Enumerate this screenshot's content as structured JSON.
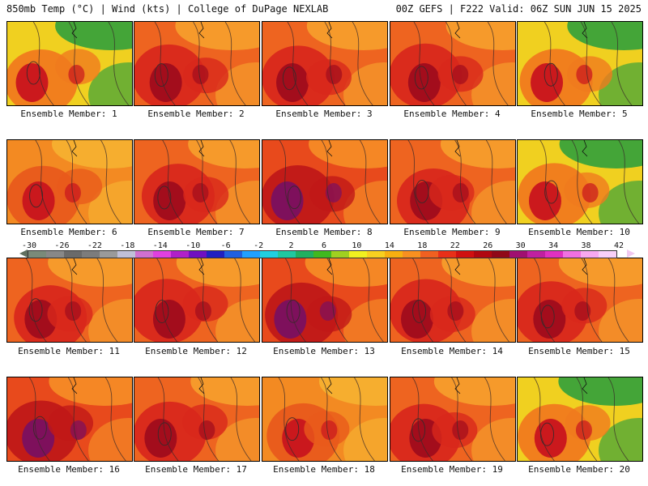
{
  "header": {
    "left": "850mb Temp (°C) | Wind (kts) | College of DuPage NEXLAB",
    "right": "00Z GEFS | F222 Valid: 06Z SUN JUN 15 2025"
  },
  "panels": [
    {
      "caption": "Ensemble Member: 1",
      "style": "cool-north"
    },
    {
      "caption": "Ensemble Member: 2",
      "style": "hot"
    },
    {
      "caption": "Ensemble Member: 3",
      "style": "hot"
    },
    {
      "caption": "Ensemble Member: 4",
      "style": "hot"
    },
    {
      "caption": "Ensemble Member: 5",
      "style": "cool-north"
    },
    {
      "caption": "Ensemble Member: 6",
      "style": "warm"
    },
    {
      "caption": "Ensemble Member: 7",
      "style": "hot"
    },
    {
      "caption": "Ensemble Member: 8",
      "style": "very-hot"
    },
    {
      "caption": "Ensemble Member: 9",
      "style": "hot"
    },
    {
      "caption": "Ensemble Member: 10",
      "style": "cool-north"
    },
    {
      "caption": "Ensemble Member: 11",
      "style": "hot"
    },
    {
      "caption": "Ensemble Member: 12",
      "style": "hot"
    },
    {
      "caption": "Ensemble Member: 13",
      "style": "very-hot"
    },
    {
      "caption": "Ensemble Member: 14",
      "style": "hot"
    },
    {
      "caption": "Ensemble Member: 15",
      "style": "hot"
    },
    {
      "caption": "Ensemble Member: 16",
      "style": "very-hot"
    },
    {
      "caption": "Ensemble Member: 17",
      "style": "hot"
    },
    {
      "caption": "Ensemble Member: 18",
      "style": "warm"
    },
    {
      "caption": "Ensemble Member: 19",
      "style": "hot"
    },
    {
      "caption": "Ensemble Member: 20",
      "style": "cool-north"
    }
  ],
  "colorbar": {
    "labels": [
      "-30",
      "-26",
      "-22",
      "-18",
      "-14",
      "-10",
      "-6",
      "-2",
      "2",
      "6",
      "10",
      "14",
      "18",
      "22",
      "26",
      "30",
      "34",
      "38",
      "42"
    ],
    "colors": [
      "#7a8a7a",
      "#888888",
      "#6a6a6a",
      "#7c7c7c",
      "#9a9a9a",
      "#c0c0d8",
      "#d070d0",
      "#e040e0",
      "#b020c8",
      "#7010c0",
      "#2020c0",
      "#2060e0",
      "#20a0ff",
      "#20d0e0",
      "#20c8a0",
      "#20b060",
      "#40b820",
      "#a0d020",
      "#f0f020",
      "#f8d020",
      "#f8b010",
      "#f89020",
      "#f06020",
      "#e83018",
      "#d01010",
      "#b00810",
      "#900818",
      "#a01070",
      "#c020a0",
      "#e030c0",
      "#f070e0",
      "#f8a8f0",
      "#f8d0f8"
    ]
  },
  "styles": {
    "cool-north": {
      "top": "#3aa23a",
      "mid": "#f0d020",
      "low": "#f07a1e",
      "hot": "#c8141e"
    },
    "warm": {
      "top": "#f5b030",
      "mid": "#f38a22",
      "low": "#e85a1c",
      "hot": "#c8141e"
    },
    "hot": {
      "top": "#f59d2c",
      "mid": "#ee6420",
      "low": "#d8281c",
      "hot": "#a00c1c"
    },
    "very-hot": {
      "top": "#f58a26",
      "mid": "#e84a1c",
      "low": "#c01818",
      "hot": "#7a1060"
    }
  }
}
